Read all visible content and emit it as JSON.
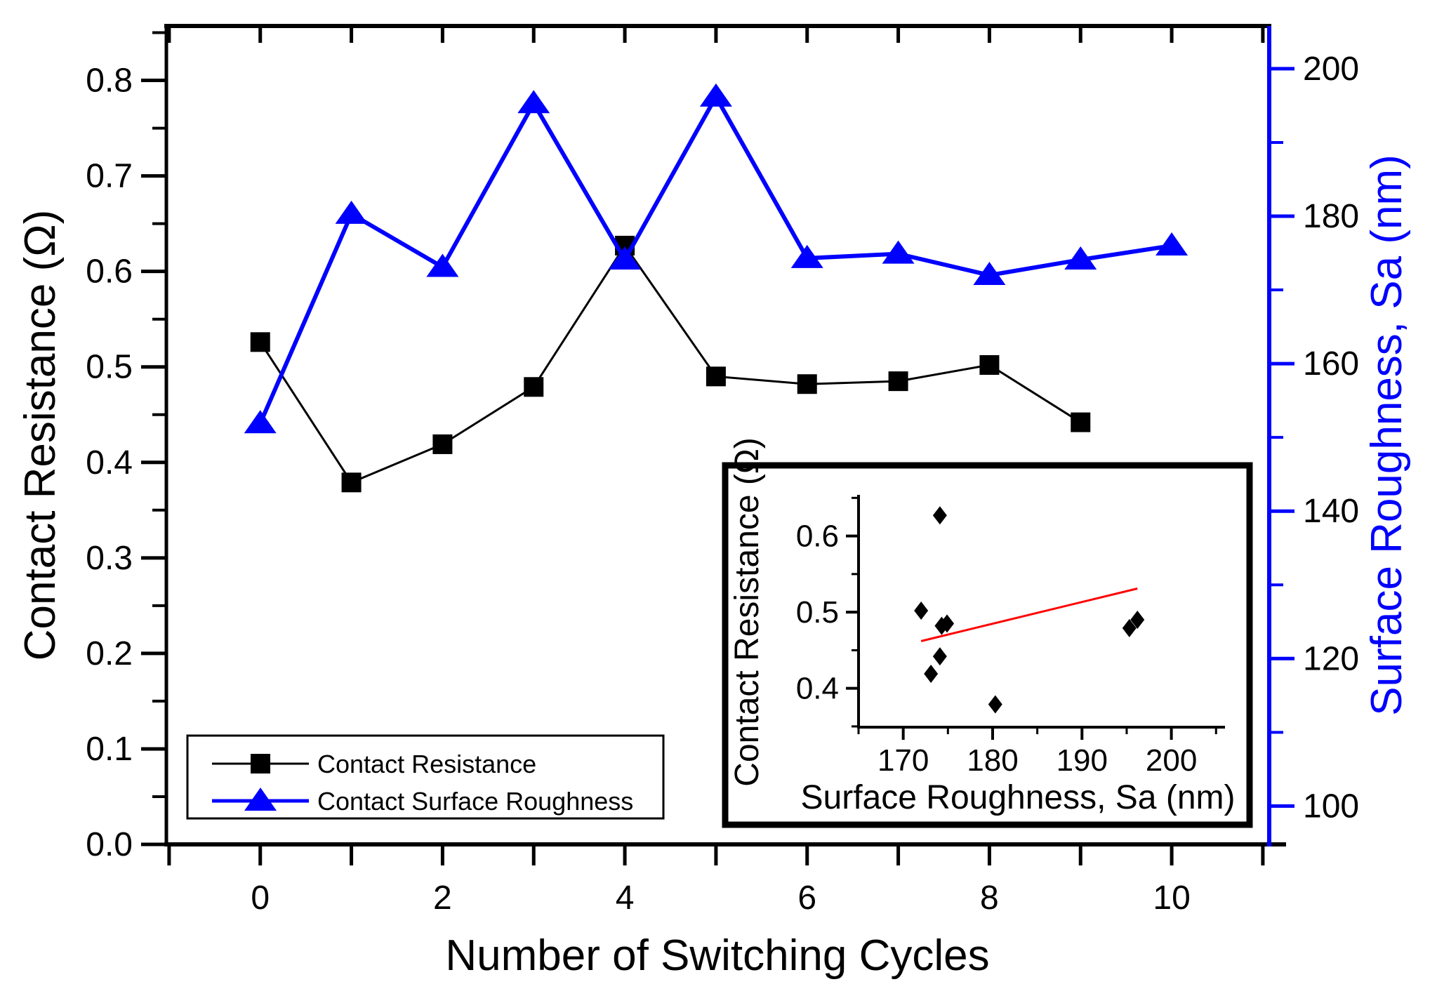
{
  "figure": {
    "background": "#ffffff",
    "colors": {
      "resistance_series": "#000000",
      "roughness_series": "#0000ff",
      "fit_line": "#ff0000"
    }
  },
  "chart_data": [
    {
      "id": "main",
      "type": "line",
      "xlabel": "Number of Switching Cycles",
      "ylabel_left": "Contact Resistance (Ω)",
      "ylabel_right": "Surface Roughness, Sa (nm)",
      "xlim": [
        -1.03,
        11.07
      ],
      "x_tick_labels": [
        "0",
        "2",
        "4",
        "6",
        "8",
        "10"
      ],
      "x_minor_ticks": [
        -1,
        1,
        3,
        5,
        7,
        9,
        11
      ],
      "ylim_left": [
        0,
        0.857
      ],
      "y_tick_labels_left": [
        "0.0",
        "0.1",
        "0.2",
        "0.3",
        "0.4",
        "0.5",
        "0.6",
        "0.7",
        "0.8"
      ],
      "ylim_right": [
        94.8,
        205.8
      ],
      "y_tick_labels_right": [
        "100",
        "120",
        "140",
        "160",
        "180",
        "200"
      ],
      "grid": false,
      "legend_position": "bottom-left",
      "legend": [
        "Contact Resistance",
        "Contact Surface Roughness"
      ],
      "series": [
        {
          "name": "Contact Resistance",
          "axis": "left",
          "marker": "square",
          "color": "#000000",
          "x": [
            0,
            1,
            2,
            3,
            4,
            5,
            6,
            7,
            8,
            9
          ],
          "values": [
            0.526,
            0.379,
            0.419,
            0.479,
            0.627,
            0.49,
            0.482,
            0.485,
            0.502,
            0.442
          ]
        },
        {
          "name": "Contact Surface Roughness",
          "axis": "right",
          "marker": "triangle",
          "color": "#0000ff",
          "x": [
            0,
            1,
            2,
            3,
            4,
            5,
            6,
            7,
            8,
            9,
            10
          ],
          "values": [
            151.9,
            180.3,
            173.1,
            195.3,
            174.1,
            196.2,
            174.3,
            174.9,
            172.0,
            174.1,
            176.0
          ]
        }
      ]
    },
    {
      "id": "inset",
      "type": "scatter",
      "xlabel": "Surface Roughness, Sa (nm)",
      "ylabel": "Contact Resistance (Ω)",
      "xlim": [
        165,
        206
      ],
      "x_tick_labels": [
        "170",
        "180",
        "190",
        "200"
      ],
      "ylim": [
        0.349,
        0.654
      ],
      "y_tick_labels": [
        "0.4",
        "0.5",
        "0.6"
      ],
      "marker": "diamond",
      "points": [
        [
          180.3,
          0.379
        ],
        [
          173.1,
          0.419
        ],
        [
          195.3,
          0.479
        ],
        [
          174.1,
          0.627
        ],
        [
          196.2,
          0.49
        ],
        [
          174.3,
          0.482
        ],
        [
          174.9,
          0.485
        ],
        [
          172.0,
          0.502
        ],
        [
          174.1,
          0.442
        ]
      ],
      "fit_line": {
        "x1": 172.0,
        "y1": 0.462,
        "x2": 196.2,
        "y2": 0.531,
        "color": "#ff0000"
      }
    }
  ]
}
